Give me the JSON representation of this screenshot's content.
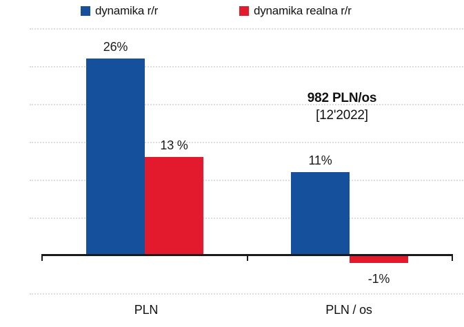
{
  "chart_data": {
    "type": "bar",
    "title": "",
    "categories": [
      "PLN",
      "PLN / os"
    ],
    "series": [
      {
        "name": "dynamika r/r",
        "color": "#15509D",
        "values": [
          26,
          11
        ],
        "labels": [
          "26%",
          "11%"
        ]
      },
      {
        "name": "dynamika realna r/r",
        "color": "#E3192D",
        "values": [
          13,
          -1
        ],
        "labels": [
          "13 %",
          "-1%"
        ]
      }
    ],
    "ylim": [
      -5,
      30
    ],
    "gridline_step_pct": 5,
    "grid": "horizontal dotted",
    "grid_color": "#DCDCDC",
    "axis_color": "#1A1A1A",
    "legend_position": "top",
    "annotation": {
      "line1": "982 PLN/os",
      "line2": "[12'2022]"
    }
  },
  "background_color": "#FFFFFF"
}
